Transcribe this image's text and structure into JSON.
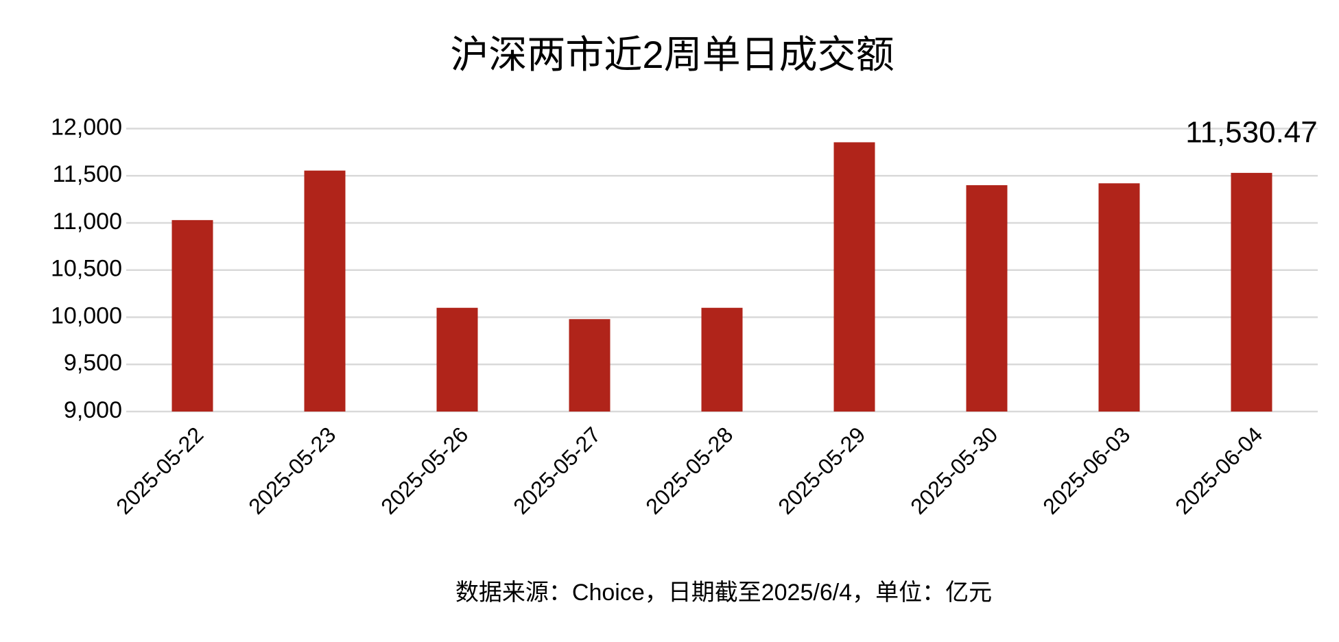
{
  "chart_data": {
    "type": "bar",
    "title": "沪深两市近2周单日成交额",
    "categories": [
      "2025-05-22",
      "2025-05-23",
      "2025-05-26",
      "2025-05-27",
      "2025-05-28",
      "2025-05-29",
      "2025-05-30",
      "2025-06-03",
      "2025-06-04"
    ],
    "values": [
      11030,
      11555,
      10100,
      9980,
      10100,
      11855,
      11400,
      11420,
      11530.47
    ],
    "value_labels": [
      null,
      null,
      null,
      null,
      null,
      null,
      null,
      null,
      "11,530.47"
    ],
    "color": "#b0241a",
    "ylim": [
      9000,
      12000
    ],
    "yticks": [
      {
        "value": 9000,
        "label": "9,000"
      },
      {
        "value": 9500,
        "label": "9,500"
      },
      {
        "value": 10000,
        "label": "10,000"
      },
      {
        "value": 10500,
        "label": "10,500"
      },
      {
        "value": 11000,
        "label": "11,000"
      },
      {
        "value": 11500,
        "label": "11,500"
      },
      {
        "value": 12000,
        "label": "12,000"
      }
    ],
    "grid": true,
    "source": "数据来源：Choice，日期截至2025/6/4，单位：亿元"
  }
}
